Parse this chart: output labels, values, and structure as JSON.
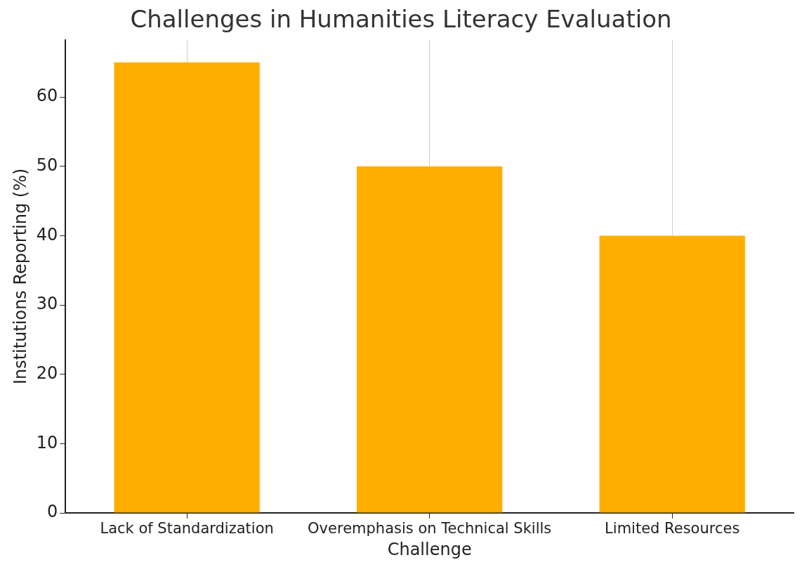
{
  "chart_data": {
    "type": "bar",
    "title": "Challenges in Humanities Literacy Evaluation",
    "xlabel": "Challenge",
    "ylabel": "Institutions Reporting (%)",
    "categories": [
      "Lack of Standardization",
      "Overemphasis on Technical Skills",
      "Limited Resources"
    ],
    "values": [
      65,
      50,
      40
    ],
    "color": "#ffae00",
    "ylim": [
      0,
      68.25
    ],
    "yticks": [
      0,
      10,
      20,
      30,
      40,
      50,
      60
    ],
    "grid": "x",
    "legend": false
  }
}
